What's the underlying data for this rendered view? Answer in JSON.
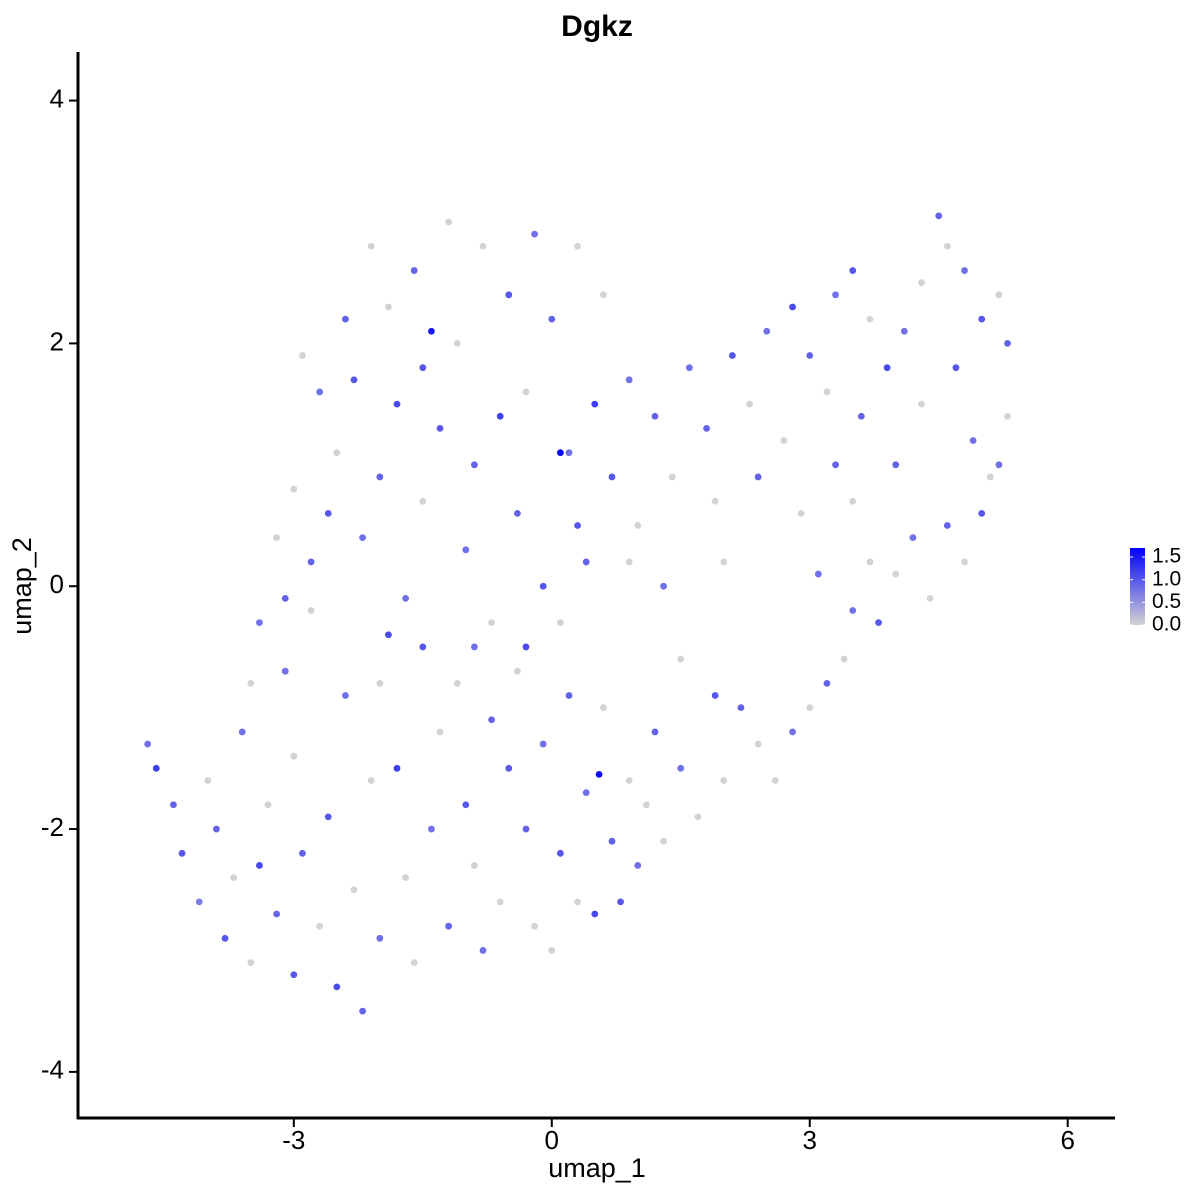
{
  "chart_data": {
    "type": "scatter",
    "title": "Dgkz",
    "x_label": "umap_1",
    "y_label": "umap_2",
    "xlim": [
      -5.51,
      6.55
    ],
    "ylim": [
      -4.38,
      4.4
    ],
    "xticks": [
      -3,
      0,
      3,
      6
    ],
    "yticks": [
      -4,
      -2,
      0,
      2,
      4
    ],
    "grid": false,
    "legend_position": "right",
    "color_low": "#d3d3d3",
    "color_high": "#0000ff",
    "colorbar_lim": [
      0,
      1.7
    ],
    "colorbar_ticks": [
      {
        "value": 0,
        "label": "0.0"
      },
      {
        "value": 0.5,
        "label": "0.5"
      },
      {
        "value": 1,
        "label": "1.0"
      },
      {
        "value": 1.5,
        "label": "1.5"
      }
    ],
    "x": [
      -4.7,
      -4.6,
      -4.4,
      -4.3,
      -4.1,
      -4.0,
      -3.9,
      -3.8,
      -3.7,
      -3.6,
      -3.5,
      -3.4,
      -3.3,
      -3.2,
      -3.1,
      -3.0,
      -3.0,
      -2.9,
      -2.8,
      -2.7,
      -2.6,
      -2.5,
      -2.4,
      -2.3,
      -2.2,
      -2.1,
      -2.0,
      -1.9,
      -1.8,
      -1.7,
      -1.6,
      -1.5,
      -1.4,
      -1.3,
      -1.2,
      -1.1,
      -1.0,
      -0.9,
      -0.8,
      -0.7,
      -0.6,
      -0.5,
      -0.4,
      -0.3,
      -0.2,
      -0.1,
      0.0,
      0.1,
      0.2,
      0.3,
      0.4,
      0.5,
      0.55,
      0.6,
      0.7,
      0.8,
      0.9,
      1.0,
      1.1,
      1.2,
      1.3,
      1.5,
      1.7,
      1.9,
      2.0,
      2.2,
      2.4,
      2.6,
      2.8,
      3.0,
      3.2,
      3.4,
      3.5,
      3.7,
      3.8,
      4.0,
      4.2,
      4.4,
      4.6,
      4.8,
      5.0,
      5.1,
      5.2,
      5.3,
      5.3,
      5.2,
      5.0,
      4.8,
      4.6,
      4.5,
      4.3,
      4.1,
      3.9,
      3.7,
      3.6,
      3.5,
      3.3,
      3.2,
      3.0,
      2.8,
      2.7,
      2.5,
      2.3,
      2.1,
      1.9,
      1.8,
      1.6,
      1.4,
      1.2,
      1.0,
      0.9,
      0.7,
      0.6,
      0.5,
      0.4,
      0.3,
      0.2,
      0.1,
      0.0,
      -0.1,
      -0.2,
      -0.3,
      -0.4,
      -0.5,
      -0.6,
      -0.7,
      -0.8,
      -0.9,
      -1.0,
      -1.1,
      -1.2,
      -1.3,
      -1.4,
      -1.5,
      -1.6,
      -1.7,
      -1.8,
      -1.9,
      -2.0,
      -2.1,
      -2.2,
      -2.3,
      -2.4,
      -2.5,
      -2.6,
      -2.7,
      -2.8,
      -2.9,
      -3.0,
      -3.1,
      -3.2,
      -3.4,
      -3.5,
      -1.5,
      -0.3,
      0.9,
      1.3,
      1.5,
      2.4,
      2.0,
      2.9,
      3.1,
      3.3,
      3.5,
      4.0,
      4.3,
      4.7,
      4.9,
      -2.0,
      -0.9,
      0.1,
      0.3
    ],
    "y": [
      -1.3,
      -1.5,
      -1.8,
      -2.2,
      -2.6,
      -1.6,
      -2.0,
      -2.9,
      -2.4,
      -1.2,
      -3.1,
      -2.3,
      -1.8,
      -2.7,
      -0.7,
      -3.2,
      -1.4,
      -2.2,
      -0.2,
      -2.8,
      -1.9,
      -3.3,
      -0.9,
      -2.5,
      -3.5,
      -1.6,
      -2.9,
      -0.4,
      -1.5,
      -2.4,
      -3.1,
      -0.5,
      -2.0,
      -1.2,
      -2.8,
      -0.8,
      -1.8,
      -2.3,
      -3.0,
      -1.1,
      -2.6,
      -1.5,
      -0.7,
      -2.0,
      -2.8,
      -1.3,
      -3.0,
      -2.2,
      -0.9,
      -2.6,
      -1.7,
      -2.7,
      -1.55,
      -1.0,
      -2.1,
      -2.6,
      -1.6,
      -2.3,
      -1.8,
      -1.2,
      -2.1,
      -1.5,
      -1.9,
      -0.9,
      -1.6,
      -1.0,
      -1.3,
      -1.6,
      -1.2,
      -1.0,
      -0.8,
      -0.6,
      -0.2,
      0.2,
      -0.3,
      0.1,
      0.4,
      -0.1,
      0.5,
      0.2,
      0.6,
      0.9,
      1.0,
      1.4,
      2.0,
      2.4,
      2.2,
      2.6,
      2.8,
      3.05,
      2.5,
      2.1,
      1.8,
      2.2,
      1.4,
      2.6,
      2.4,
      1.6,
      1.9,
      2.3,
      1.2,
      2.1,
      1.5,
      1.9,
      0.7,
      1.3,
      1.8,
      0.9,
      1.4,
      0.5,
      1.7,
      0.9,
      2.4,
      1.5,
      0.2,
      2.8,
      1.1,
      1.1,
      2.2,
      0.0,
      2.9,
      1.6,
      0.6,
      2.4,
      1.4,
      -0.3,
      2.8,
      1.0,
      0.3,
      2.0,
      3.0,
      1.3,
      2.1,
      0.7,
      2.6,
      -0.1,
      1.5,
      2.3,
      0.9,
      2.8,
      0.4,
      1.7,
      2.2,
      1.1,
      0.6,
      1.6,
      0.2,
      1.9,
      0.8,
      -0.1,
      0.4,
      -0.3,
      -0.8,
      1.8,
      -0.5,
      0.2,
      0.0,
      -0.6,
      0.9,
      0.2,
      0.6,
      0.1,
      1.0,
      0.7,
      1.0,
      1.5,
      1.8,
      1.2,
      -0.8,
      -0.5,
      -0.3,
      0.5
    ],
    "values": [
      0.8,
      1.2,
      0.9,
      1.0,
      0.7,
      0.0,
      0.9,
      1.0,
      0.0,
      0.8,
      0.0,
      1.1,
      0.0,
      0.9,
      0.8,
      1.0,
      0.0,
      0.9,
      0.0,
      0.0,
      1.0,
      1.1,
      0.8,
      0.0,
      0.9,
      0.0,
      0.8,
      1.1,
      1.2,
      0.0,
      0.0,
      1.0,
      0.8,
      0.0,
      0.9,
      0.0,
      1.0,
      0.0,
      0.8,
      0.9,
      0.0,
      1.0,
      0.0,
      0.9,
      0.0,
      0.8,
      0.0,
      1.0,
      0.9,
      0.0,
      0.8,
      1.1,
      1.6,
      0.0,
      0.9,
      1.0,
      0.0,
      0.8,
      0.0,
      0.9,
      0.0,
      0.8,
      0.0,
      1.0,
      0.0,
      0.9,
      0.0,
      0.0,
      0.8,
      0.0,
      0.9,
      0.0,
      0.8,
      0.0,
      1.0,
      0.0,
      0.8,
      0.0,
      0.9,
      0.0,
      1.0,
      0.0,
      0.8,
      0.0,
      0.9,
      0.0,
      1.0,
      0.8,
      0.0,
      0.9,
      0.0,
      0.8,
      1.1,
      0.0,
      0.9,
      1.0,
      0.8,
      0.0,
      0.9,
      1.1,
      0.0,
      0.8,
      0.0,
      1.0,
      0.0,
      0.9,
      0.8,
      0.0,
      0.9,
      0.0,
      0.8,
      1.0,
      0.0,
      1.2,
      0.9,
      0.0,
      0.8,
      1.6,
      0.9,
      1.0,
      0.8,
      0.0,
      0.9,
      1.0,
      1.2,
      0.0,
      0.0,
      0.9,
      0.8,
      0.0,
      0.0,
      1.0,
      1.5,
      0.0,
      0.9,
      0.8,
      1.1,
      0.0,
      0.9,
      0.0,
      0.8,
      1.0,
      0.9,
      0.0,
      1.0,
      0.8,
      0.9,
      0.0,
      0.0,
      0.9,
      0.0,
      0.8,
      0.0,
      1.0,
      1.1,
      0.0,
      0.8,
      0.0,
      0.9,
      0.0,
      0.0,
      0.8,
      0.9,
      0.0,
      0.9,
      0.0,
      1.0,
      0.8,
      0.0,
      0.8,
      0.0,
      1.0
    ]
  }
}
